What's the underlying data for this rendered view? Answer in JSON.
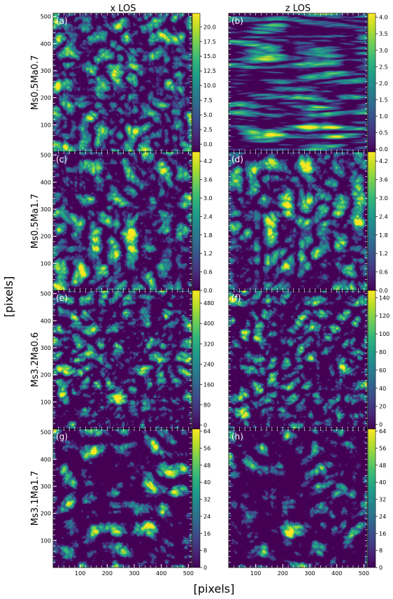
{
  "figure": {
    "column_titles": [
      "x LOS",
      "z LOS"
    ],
    "row_labels": [
      "Ms0.5Ma0.7",
      "Ms0.5Ma1.7",
      "Ms3.2Ma0.6",
      "Ms3.1Ma1.7"
    ],
    "xlabel": "[pixels]",
    "ylabel": "[pixels]",
    "colormap": [
      "#440154",
      "#482878",
      "#3e4989",
      "#31688e",
      "#26828e",
      "#1f9e89",
      "#35b779",
      "#6ece58",
      "#b5de2b",
      "#fde725"
    ]
  },
  "chart_data": [
    {
      "type": "heatmap",
      "panel_label": "(a)",
      "row": 0,
      "col": 0,
      "xlim": [
        0,
        512
      ],
      "ylim": [
        0,
        512
      ],
      "xticks": [],
      "yticks": [
        100,
        200,
        300,
        400,
        500
      ],
      "colorbar_ticks": [
        "0.0",
        "2.5",
        "5.0",
        "7.5",
        "10.0",
        "12.5",
        "15.0",
        "17.5",
        "20.0"
      ],
      "colorbar_range": [
        -1.3,
        22.3
      ],
      "texture": "isotropic"
    },
    {
      "type": "heatmap",
      "panel_label": "(b)",
      "row": 0,
      "col": 1,
      "xlim": [
        0,
        512
      ],
      "ylim": [
        0,
        512
      ],
      "xticks": [],
      "yticks": [],
      "colorbar_ticks": [
        "0.0",
        "0.5",
        "1.0",
        "1.5",
        "2.0",
        "2.5",
        "3.0",
        "3.5",
        "4.0"
      ],
      "colorbar_range": [
        -0.08,
        4.12
      ],
      "texture": "horizontal"
    },
    {
      "type": "heatmap",
      "panel_label": "(c)",
      "row": 1,
      "col": 0,
      "xlim": [
        0,
        512
      ],
      "ylim": [
        0,
        512
      ],
      "xticks": [],
      "yticks": [
        100,
        200,
        300,
        400,
        500
      ],
      "colorbar_ticks": [
        "0.0",
        "0.6",
        "1.2",
        "1.8",
        "2.4",
        "3.0",
        "3.6",
        "4.2"
      ],
      "colorbar_range": [
        0,
        4.5
      ],
      "texture": "patchy"
    },
    {
      "type": "heatmap",
      "panel_label": "(d)",
      "row": 1,
      "col": 1,
      "xlim": [
        0,
        512
      ],
      "ylim": [
        0,
        512
      ],
      "xticks": [],
      "yticks": [],
      "colorbar_ticks": [
        "0.0",
        "0.6",
        "1.2",
        "1.8",
        "2.4",
        "3.0",
        "3.6",
        "4.2"
      ],
      "colorbar_range": [
        0,
        4.5
      ],
      "texture": "patchy"
    },
    {
      "type": "heatmap",
      "panel_label": "(e)",
      "row": 2,
      "col": 0,
      "xlim": [
        0,
        512
      ],
      "ylim": [
        0,
        512
      ],
      "xticks": [],
      "yticks": [
        100,
        200,
        300,
        400,
        500
      ],
      "colorbar_ticks": [
        "0",
        "80",
        "160",
        "240",
        "320",
        "400",
        "480"
      ],
      "colorbar_range": [
        -15,
        530
      ],
      "texture": "filamentary"
    },
    {
      "type": "heatmap",
      "panel_label": "(f)",
      "row": 2,
      "col": 1,
      "xlim": [
        0,
        512
      ],
      "ylim": [
        0,
        512
      ],
      "xticks": [],
      "yticks": [],
      "colorbar_ticks": [
        "0",
        "20",
        "40",
        "60",
        "80",
        "100",
        "120",
        "140"
      ],
      "colorbar_range": [
        -5,
        148
      ],
      "texture": "filamentary"
    },
    {
      "type": "heatmap",
      "panel_label": "(g)",
      "row": 3,
      "col": 0,
      "xlim": [
        0,
        512
      ],
      "ylim": [
        0,
        512
      ],
      "xticks": [
        100,
        200,
        300,
        400,
        500
      ],
      "yticks": [
        100,
        200,
        300,
        400,
        500
      ],
      "colorbar_ticks": [
        "0",
        "8",
        "16",
        "24",
        "32",
        "40",
        "48",
        "56",
        "64"
      ],
      "colorbar_range": [
        0,
        65
      ],
      "texture": "clumpy"
    },
    {
      "type": "heatmap",
      "panel_label": "(h)",
      "row": 3,
      "col": 1,
      "xlim": [
        0,
        512
      ],
      "ylim": [
        0,
        512
      ],
      "xticks": [
        100,
        200,
        300,
        400,
        500
      ],
      "yticks": [],
      "colorbar_ticks": [
        "0",
        "8",
        "16",
        "24",
        "32",
        "40",
        "48",
        "56",
        "64"
      ],
      "colorbar_range": [
        0,
        65
      ],
      "texture": "clumpy"
    }
  ]
}
